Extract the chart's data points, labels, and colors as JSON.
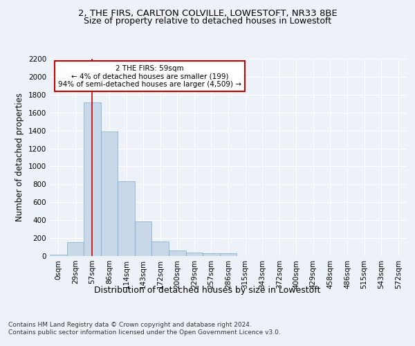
{
  "title_line1": "2, THE FIRS, CARLTON COLVILLE, LOWESTOFT, NR33 8BE",
  "title_line2": "Size of property relative to detached houses in Lowestoft",
  "xlabel": "Distribution of detached houses by size in Lowestoft",
  "ylabel": "Number of detached properties",
  "bin_labels": [
    "0sqm",
    "29sqm",
    "57sqm",
    "86sqm",
    "114sqm",
    "143sqm",
    "172sqm",
    "200sqm",
    "229sqm",
    "257sqm",
    "286sqm",
    "315sqm",
    "343sqm",
    "372sqm",
    "400sqm",
    "429sqm",
    "458sqm",
    "486sqm",
    "515sqm",
    "543sqm",
    "572sqm"
  ],
  "bar_values": [
    18,
    155,
    1710,
    1390,
    835,
    385,
    160,
    65,
    38,
    30,
    30,
    0,
    0,
    0,
    0,
    0,
    0,
    0,
    0,
    0,
    0
  ],
  "bar_color": "#c8d8e8",
  "bar_edge_color": "#7aaac8",
  "ylim": [
    0,
    2200
  ],
  "yticks": [
    0,
    200,
    400,
    600,
    800,
    1000,
    1200,
    1400,
    1600,
    1800,
    2000,
    2200
  ],
  "property_bin_index": 2,
  "vline_color": "#cc0000",
  "annotation_text": "2 THE FIRS: 59sqm\n← 4% of detached houses are smaller (199)\n94% of semi-detached houses are larger (4,509) →",
  "annotation_box_color": "#ffffff",
  "annotation_box_edge": "#cc0000",
  "footer_line1": "Contains HM Land Registry data © Crown copyright and database right 2024.",
  "footer_line2": "Contains public sector information licensed under the Open Government Licence v3.0.",
  "background_color": "#edf2f9",
  "plot_bg_color": "#edf2f9",
  "grid_color": "#ffffff",
  "title_fontsize": 9.5,
  "subtitle_fontsize": 9,
  "tick_fontsize": 7.5,
  "ylabel_fontsize": 8.5,
  "xlabel_fontsize": 9,
  "footer_fontsize": 6.5
}
